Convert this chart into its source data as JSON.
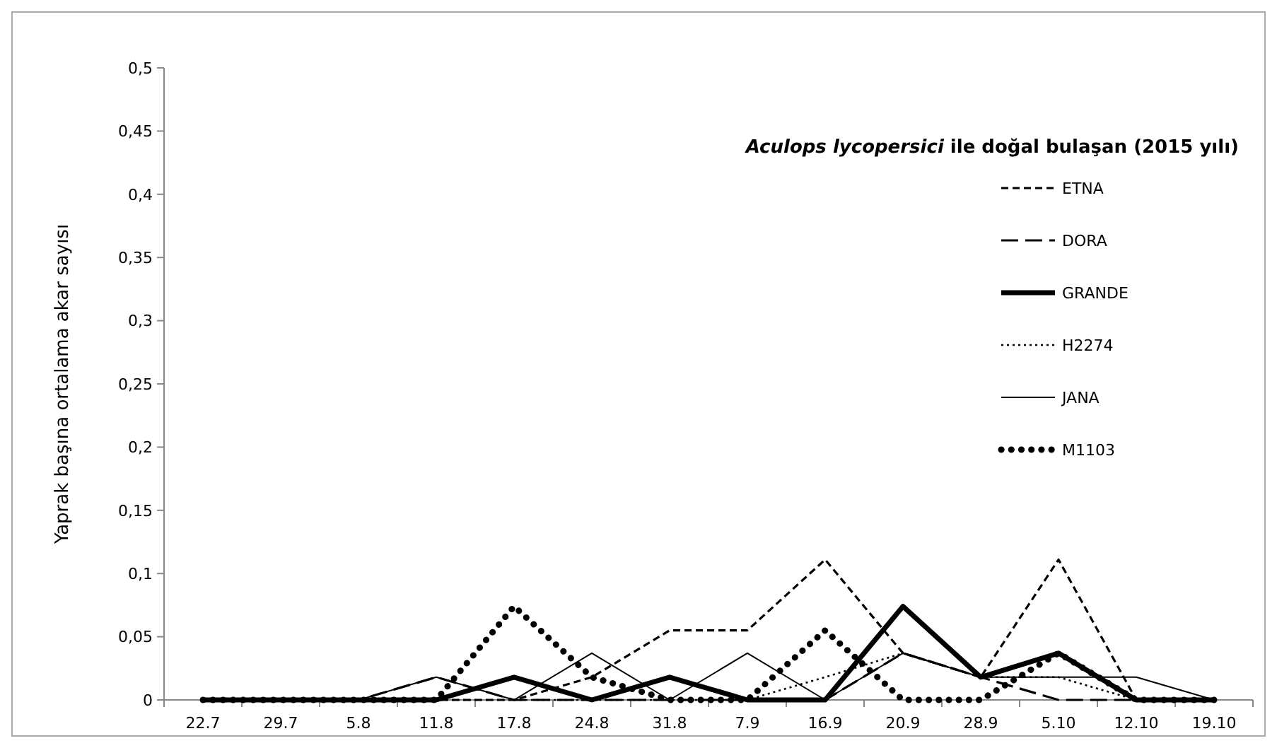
{
  "chart_data": {
    "type": "line",
    "title": "Aculops lycopersici ile doğal bulaşan (2015 yılı)",
    "ylabel": "Yaprak başına ortalama akar sayısı",
    "categories": [
      "22.7",
      "29.7",
      "5.8",
      "11.8",
      "17.8",
      "24.8",
      "31.8",
      "7.9",
      "16.9",
      "20.9",
      "28.9",
      "5.10",
      "12.10",
      "19.10"
    ],
    "series": [
      {
        "name": "ETNA",
        "color": "#000000",
        "line_style": "dashed",
        "values": [
          0,
          0,
          0,
          0,
          0,
          0.018,
          0.055,
          0.055,
          0.111,
          0.037,
          0.018,
          0.111,
          0,
          0
        ]
      },
      {
        "name": "DORA",
        "color": "#000000",
        "line_style": "dashed",
        "values": [
          0,
          0,
          0,
          0.018,
          0,
          0,
          0,
          0,
          0,
          0.037,
          0.018,
          0,
          0,
          0
        ]
      },
      {
        "name": "GRANDE",
        "color": "#000000",
        "line_style": "solid",
        "values": [
          0,
          0,
          0,
          0,
          0.018,
          0,
          0.018,
          0,
          0,
          0.074,
          0.018,
          0.037,
          0,
          0
        ]
      },
      {
        "name": "H2274",
        "color": "#000000",
        "line_style": "dotted",
        "values": [
          0,
          0,
          0,
          0,
          0,
          0,
          0,
          0,
          0.018,
          0.037,
          0.018,
          0.018,
          0,
          0
        ]
      },
      {
        "name": "JANA",
        "color": "#000000",
        "line_style": "solid",
        "values": [
          0,
          0,
          0,
          0.018,
          0,
          0.037,
          0,
          0.037,
          0,
          0.037,
          0.018,
          0.018,
          0.018,
          0
        ]
      },
      {
        "name": "M1103",
        "color": "#000000",
        "line_style": "dotted",
        "values": [
          0,
          0,
          0,
          0,
          0.074,
          0.018,
          0,
          0,
          0.055,
          0,
          0,
          0.037,
          0,
          0
        ]
      }
    ],
    "ylim": [
      0,
      0.5
    ],
    "yticks": [
      0,
      {
        "value": 0.05,
        "label": "0,05"
      },
      {
        "value": 0.1,
        "label": "0,1"
      },
      {
        "value": 0.15,
        "label": "0,15"
      },
      {
        "value": 0.2,
        "label": "0,2"
      },
      {
        "value": 0.25,
        "label": "0,25"
      },
      {
        "value": 0.3,
        "label": "0,3"
      },
      {
        "value": 0.35,
        "label": "0,35"
      },
      {
        "value": 0.4,
        "label": "0,4"
      },
      {
        "value": 0.45,
        "label": "0,45"
      },
      {
        "value": 0.5,
        "label": "0,5"
      }
    ],
    "legend": "top right",
    "marker": "none",
    "grid": false
  }
}
